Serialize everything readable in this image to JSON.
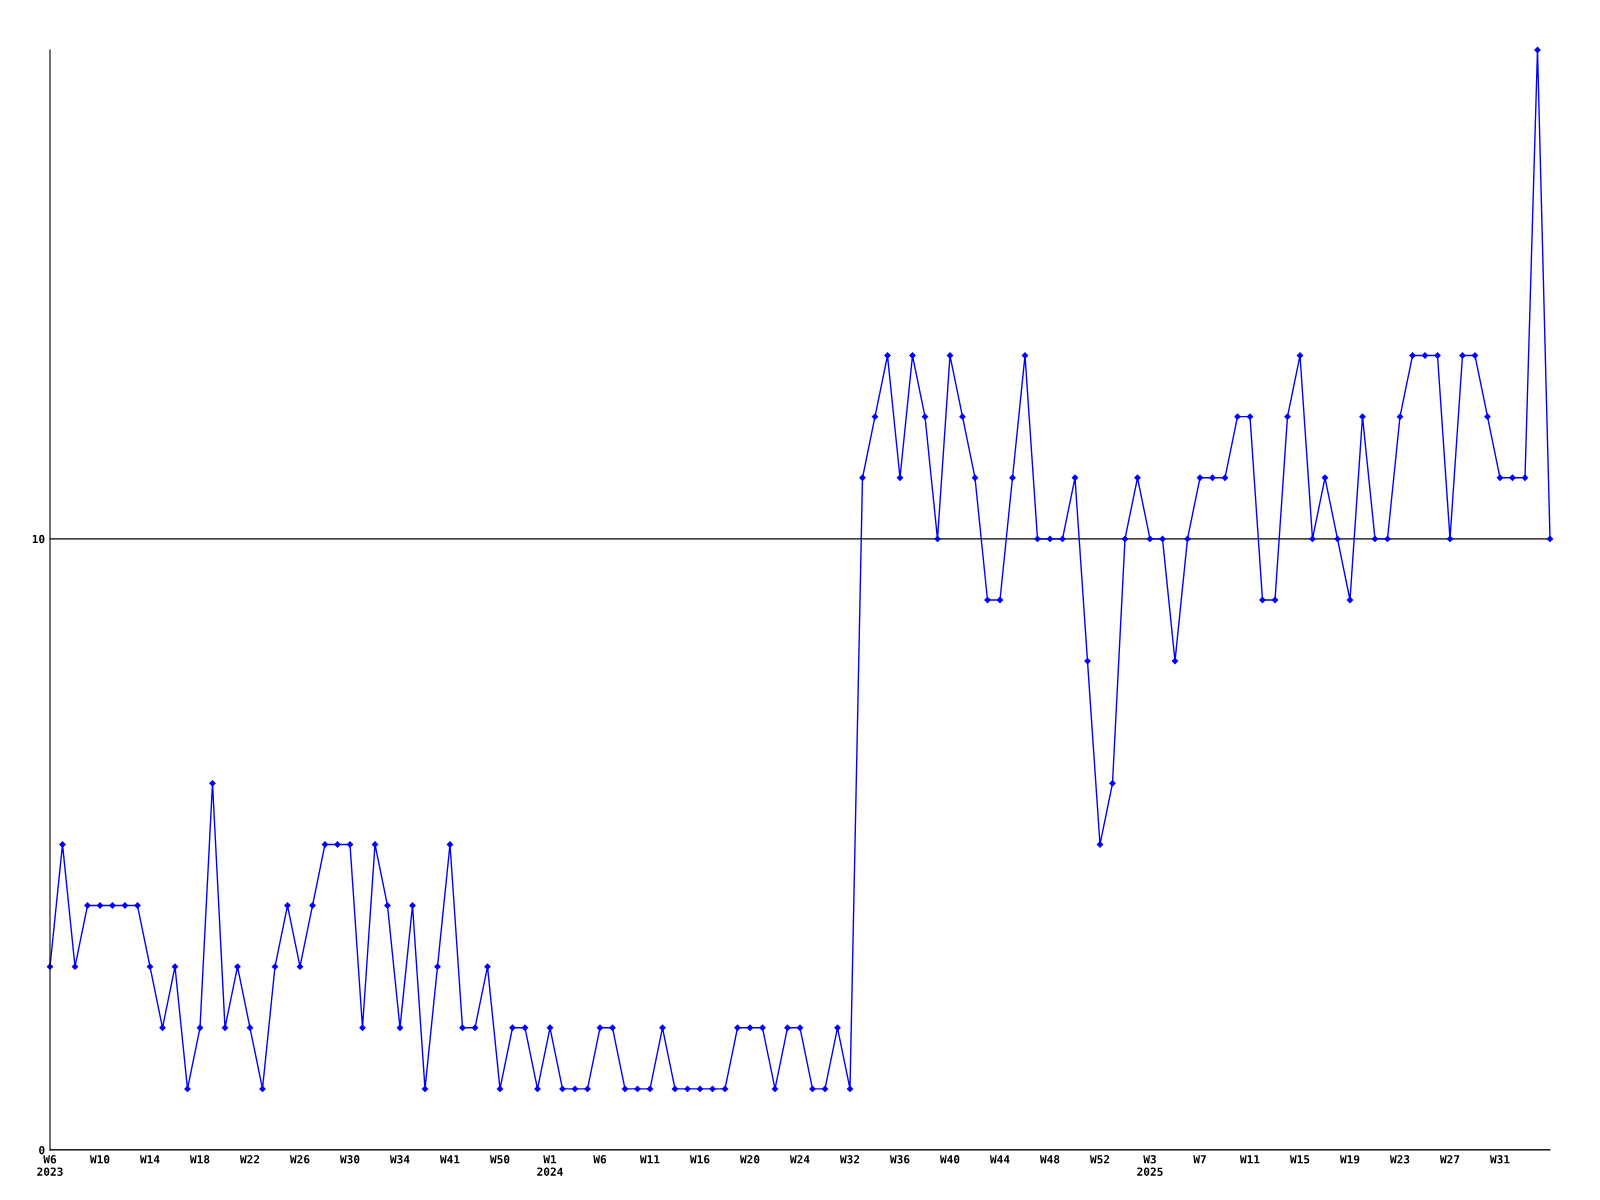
{
  "chart_data": {
    "type": "line",
    "categories": [
      "W6\n2023",
      null,
      null,
      null,
      "W10",
      null,
      null,
      null,
      "W14",
      null,
      null,
      null,
      "W18",
      null,
      null,
      null,
      "W22",
      null,
      null,
      null,
      "W26",
      null,
      null,
      null,
      "W30",
      null,
      null,
      null,
      "W34",
      null,
      null,
      null,
      "W41",
      null,
      null,
      null,
      "W50",
      null,
      null,
      null,
      "W1\n2024",
      null,
      null,
      null,
      "W6",
      null,
      null,
      null,
      "W11",
      null,
      null,
      null,
      "W16",
      null,
      null,
      null,
      "W20",
      null,
      null,
      null,
      "W24",
      null,
      null,
      null,
      "W32",
      null,
      null,
      null,
      "W36",
      null,
      null,
      null,
      "W40",
      null,
      null,
      null,
      "W44",
      null,
      null,
      null,
      "W48",
      null,
      null,
      null,
      "W52",
      null,
      null,
      null,
      "W3\n2025",
      null,
      null,
      null,
      "W7",
      null,
      null,
      null,
      "W11",
      null,
      null,
      null,
      "W15",
      null,
      null,
      null,
      "W19",
      null,
      null,
      null,
      "W23",
      null,
      null,
      null,
      "W27",
      null,
      null,
      null,
      "W31",
      null,
      null,
      null,
      null
    ],
    "series": [
      {
        "color": "#0000ff",
        "values": [
          3,
          5,
          3,
          4,
          4,
          4,
          4,
          4,
          3,
          2,
          3,
          1,
          2,
          6,
          2,
          3,
          2,
          1,
          3,
          4,
          3,
          4,
          5,
          5,
          5,
          2,
          5,
          4,
          2,
          4,
          1,
          3,
          5,
          2,
          2,
          3,
          1,
          2,
          2,
          1,
          2,
          1,
          1,
          1,
          2,
          2,
          1,
          1,
          1,
          2,
          1,
          1,
          1,
          1,
          1,
          2,
          2,
          2,
          1,
          2,
          2,
          1,
          1,
          2,
          1,
          11,
          12,
          13,
          11,
          13,
          12,
          10,
          13,
          12,
          11,
          9,
          9,
          11,
          13,
          10,
          10,
          10,
          11,
          8,
          5,
          6,
          10,
          11,
          10,
          10,
          8,
          10,
          11,
          11,
          11,
          12,
          12,
          9,
          9,
          12,
          13,
          10,
          11,
          10,
          9,
          12,
          10,
          10,
          12,
          13,
          13,
          13,
          10,
          13,
          13,
          12,
          11,
          11,
          11,
          18,
          10
        ]
      }
    ],
    "ylim": [
      0,
      18
    ],
    "yticks": [
      0,
      10
    ],
    "grid": "y",
    "marker": "diamond",
    "line_style": "solid",
    "legend": false
  }
}
